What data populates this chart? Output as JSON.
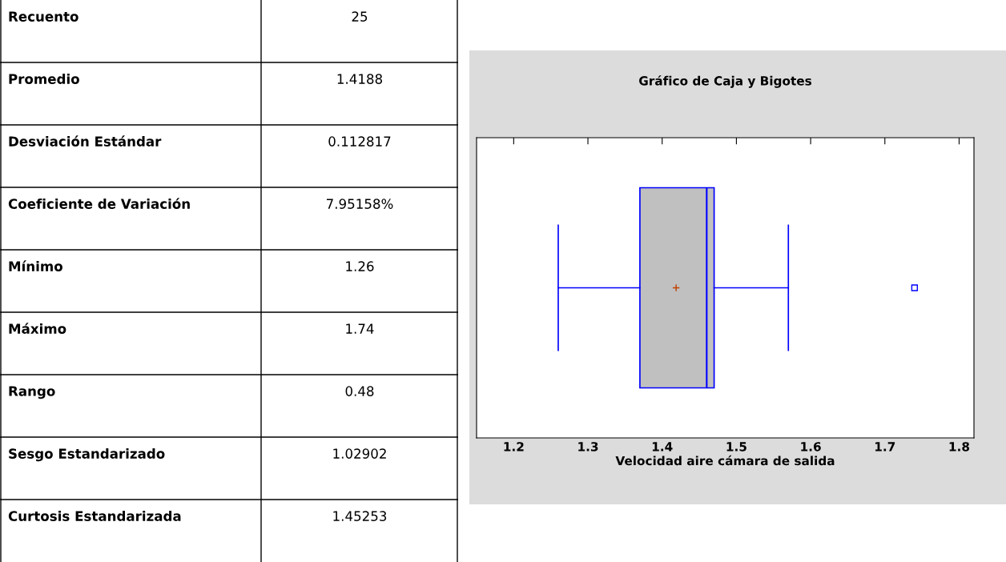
{
  "chart_data": [
    {
      "type": "other",
      "annotations": [
        "Recuento",
        "25",
        "Promedio",
        "1.4188",
        "Desviación Estándar",
        "0.112817",
        "Coeficiente de Variación",
        "7.95158%",
        "Mínimo",
        "1.26",
        "Máximo",
        "1.74",
        "Rango",
        "0.48",
        "Sesgo Estandarizado",
        "1.02902",
        "Curtosis Estandarizada",
        "1.45253"
      ]
    },
    {
      "type": "box",
      "orientation": "horizontal",
      "title": "Gráfico de Caja y Bigotes",
      "xlabel": "Velocidad aire cámara de salida",
      "categories": [
        null
      ],
      "color": "#0000ff",
      "colors": [
        "#c0c0c0"
      ],
      "boxes": [
        {
          "low": 1.26,
          "q1": 1.37,
          "median": 1.46,
          "q3": 1.47,
          "high": 1.57,
          "mean": 1.4188,
          "outliers": [
            1.74
          ]
        }
      ],
      "xlim": [
        1.15,
        1.82
      ],
      "xticks": [
        1.2,
        1.3,
        1.4,
        1.5,
        1.6,
        1.7,
        1.8
      ]
    }
  ]
}
